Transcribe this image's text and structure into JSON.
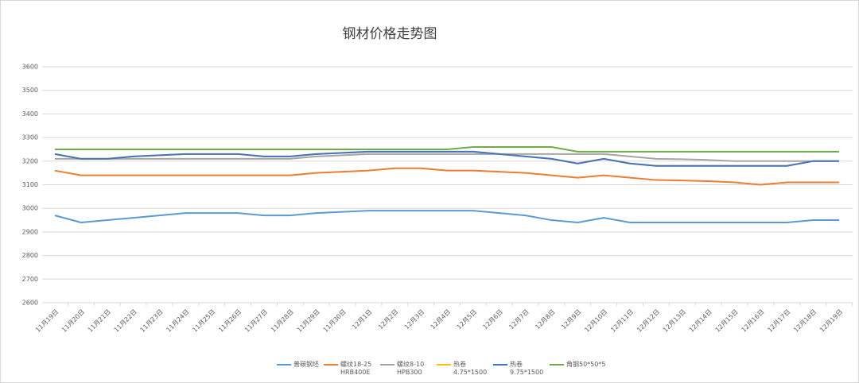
{
  "chart_data": {
    "type": "line",
    "title": "钢材价格走势图",
    "categories": [
      "11月19日",
      "11月20日",
      "11月21日",
      "11月22日",
      "11月23日",
      "11月24日",
      "11月25日",
      "11月26日",
      "11月27日",
      "11月28日",
      "11月29日",
      "11月30日",
      "12月1日",
      "12月2日",
      "12月3日",
      "12月4日",
      "12月5日",
      "12月6日",
      "12月7日",
      "12月8日",
      "12月9日",
      "12月10日",
      "12月11日",
      "12月12日",
      "12月13日",
      "12月14日",
      "12月15日",
      "12月16日",
      "12月17日",
      "12月18日",
      "12月19日"
    ],
    "series": [
      {
        "name": "普碳钢坯",
        "color": "#5b9bd5",
        "values": [
          2970,
          2940,
          2950,
          2960,
          2970,
          2980,
          2980,
          2980,
          2970,
          2970,
          2980,
          2985,
          2990,
          2990,
          2990,
          2990,
          2990,
          2980,
          2970,
          2950,
          2940,
          2960,
          2940,
          2940,
          2940,
          2940,
          2940,
          2940,
          2940,
          2950,
          2950
        ]
      },
      {
        "name": "螺纹18-25 HRB400E",
        "color": "#ed7d31",
        "values": [
          3160,
          3140,
          3140,
          3140,
          3140,
          3140,
          3140,
          3140,
          3140,
          3140,
          3150,
          3155,
          3160,
          3170,
          3170,
          3160,
          3160,
          3155,
          3150,
          3140,
          3130,
          3140,
          3130,
          3120,
          3118,
          3115,
          3110,
          3100,
          3110,
          3110,
          3110
        ]
      },
      {
        "name": "螺纹8-10 HPB300",
        "color": "#a5a5a5",
        "values": [
          3210,
          3210,
          3210,
          3210,
          3210,
          3210,
          3210,
          3210,
          3210,
          3210,
          3220,
          3225,
          3230,
          3230,
          3230,
          3230,
          3230,
          3230,
          3230,
          3230,
          3230,
          3230,
          3220,
          3210,
          3208,
          3205,
          3200,
          3200,
          3200,
          3200,
          3200
        ]
      },
      {
        "name": "热卷4.75*1500",
        "color": "#ffc000",
        "values": [
          3230,
          3210,
          3210,
          3220,
          3225,
          3230,
          3230,
          3230,
          3220,
          3220,
          3230,
          3235,
          3240,
          3240,
          3240,
          3240,
          3240,
          3230,
          3220,
          3210,
          3190,
          3210,
          3190,
          3180,
          3180,
          3180,
          3180,
          3180,
          3180,
          3200,
          3200
        ]
      },
      {
        "name": "热卷9.75*1500",
        "color": "#4472c4",
        "values": [
          3230,
          3210,
          3210,
          3220,
          3225,
          3230,
          3230,
          3230,
          3220,
          3220,
          3230,
          3235,
          3240,
          3240,
          3240,
          3240,
          3240,
          3230,
          3220,
          3210,
          3190,
          3210,
          3190,
          3180,
          3180,
          3180,
          3180,
          3180,
          3180,
          3200,
          3200
        ]
      },
      {
        "name": "角钢50*50*5",
        "color": "#70ad47",
        "values": [
          3250,
          3250,
          3250,
          3250,
          3250,
          3250,
          3250,
          3250,
          3250,
          3250,
          3250,
          3250,
          3250,
          3250,
          3250,
          3250,
          3260,
          3260,
          3260,
          3260,
          3240,
          3240,
          3240,
          3240,
          3240,
          3240,
          3240,
          3240,
          3240,
          3240,
          3240
        ]
      }
    ],
    "ylim": [
      2600,
      3600
    ],
    "yticks": [
      2600,
      2700,
      2800,
      2900,
      3000,
      3100,
      3200,
      3300,
      3400,
      3500,
      3600
    ],
    "grid": true
  }
}
